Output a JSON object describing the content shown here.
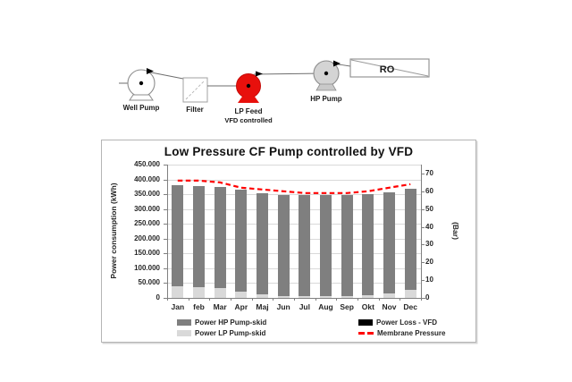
{
  "diagram": {
    "well_pump_label": "Well Pump",
    "filter_label": "Filter",
    "lp_feed_label": "LP Feed",
    "lp_feed_sublabel": "VFD controlled",
    "hp_pump_label": "HP Pump",
    "ro_label": "RO",
    "lp_pump_color": "#e8100c",
    "hp_pump_color": "#d4d4d4"
  },
  "chart_data": {
    "type": "bar",
    "title": "Low Pressure CF Pump controlled by VFD",
    "categories": [
      "Jan",
      "feb",
      "Mar",
      "Apr",
      "Maj",
      "Jun",
      "Jul",
      "Aug",
      "Sep",
      "Okt",
      "Nov",
      "Dec"
    ],
    "series": [
      {
        "name": "Power LP Pump-skid",
        "render": "bar",
        "stack": true,
        "color": "#d9d9d9",
        "values": [
          38000,
          37000,
          34000,
          22000,
          12000,
          5000,
          5000,
          6000,
          6000,
          9000,
          15000,
          28000
        ]
      },
      {
        "name": "Power Loss - VFD",
        "render": "bar",
        "stack": true,
        "color": "#000000",
        "values": [
          0,
          0,
          0,
          0,
          0,
          0,
          0,
          0,
          0,
          0,
          0,
          0
        ]
      },
      {
        "name": "Power HP Pump-skid",
        "render": "bar",
        "stack": true,
        "color": "#7f7f7f",
        "values": [
          342000,
          342000,
          342000,
          342000,
          342000,
          342000,
          342000,
          342000,
          342000,
          342000,
          342000,
          342000
        ]
      },
      {
        "name": "Membrane Pressure",
        "render": "line",
        "axis": "right",
        "color": "#ff0000",
        "dashed": true,
        "values": [
          66,
          66,
          65,
          62,
          61,
          60,
          59,
          59,
          59,
          60,
          62,
          64
        ]
      }
    ],
    "left_axis": {
      "label": "Power consumption (kWh)",
      "min": 0,
      "max": 450000,
      "step": 50000,
      "tick_labels": [
        "0",
        "50.000",
        "100.000",
        "150.000",
        "200.000",
        "250.000",
        "300.000",
        "350.000",
        "400.000",
        "450.000"
      ]
    },
    "right_axis": {
      "label": "(Bar)",
      "min": 0,
      "scale_max": 75,
      "tick_step": 10,
      "tick_labels": [
        "0",
        "10",
        "20",
        "30",
        "40",
        "50",
        "60",
        "70"
      ]
    },
    "legend": [
      {
        "label": "Power HP Pump-skid",
        "swatch": "rect",
        "color": "#7f7f7f",
        "col": 0,
        "row": 0
      },
      {
        "label": "Power LP Pump-skid",
        "swatch": "rect",
        "color": "#d9d9d9",
        "col": 0,
        "row": 1
      },
      {
        "label": "Power Loss - VFD",
        "swatch": "rect",
        "color": "#000000",
        "col": 1,
        "row": 0
      },
      {
        "label": "Membrane Pressure",
        "swatch": "dashes",
        "color": "#ff0000",
        "col": 1,
        "row": 1
      }
    ],
    "grid": true,
    "legend_position": "bottom"
  }
}
